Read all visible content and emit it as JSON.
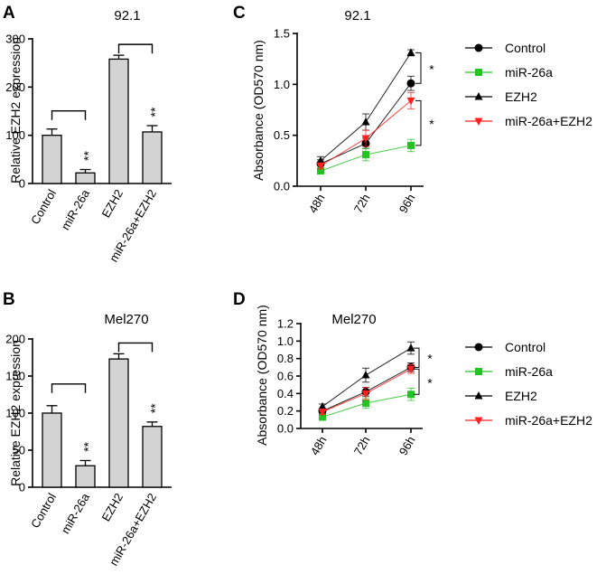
{
  "chart_data": [
    {
      "panel": "A",
      "type": "bar",
      "title": "92.1",
      "ylabel": "Relative EZH2 expression",
      "ylim": [
        0,
        300
      ],
      "yticks": [
        0,
        100,
        200,
        300
      ],
      "categories": [
        "Control",
        "miR-26a",
        "EZH2",
        "miR-26a+EZH2"
      ],
      "values": [
        100,
        22,
        258,
        107
      ],
      "errors": [
        13,
        7,
        8,
        13
      ],
      "significance": [
        "",
        "**",
        "",
        "**"
      ],
      "brackets": [
        [
          0,
          1
        ],
        [
          2,
          3
        ]
      ]
    },
    {
      "panel": "C",
      "type": "line",
      "title": "92.1",
      "ylabel": "Absorbance (OD570 nm)",
      "ylim": [
        0,
        1.5
      ],
      "yticks": [
        "0.0",
        "0.5",
        "1.0",
        "1.5"
      ],
      "x": [
        "48h",
        "72h",
        "96h"
      ],
      "series": [
        {
          "name": "Control",
          "values": [
            0.22,
            0.42,
            1.01
          ],
          "errors": [
            0.04,
            0.05,
            0.07
          ],
          "color": "#000000",
          "marker": "circle"
        },
        {
          "name": "miR-26a",
          "values": [
            0.15,
            0.31,
            0.4
          ],
          "errors": [
            0.02,
            0.06,
            0.06
          ],
          "color": "#22c322",
          "marker": "square"
        },
        {
          "name": "EZH2",
          "values": [
            0.25,
            0.63,
            1.31
          ],
          "errors": [
            0.04,
            0.08,
            0.03
          ],
          "color": "#000000",
          "marker": "triangle-up"
        },
        {
          "name": "miR-26a+EZH2",
          "values": [
            0.2,
            0.47,
            0.84
          ],
          "errors": [
            0.03,
            0.08,
            0.08
          ],
          "color": "#ff2020",
          "marker": "triangle-down"
        }
      ],
      "significance": [
        {
          "label": "*",
          "between": [
            "EZH2",
            "Control"
          ]
        },
        {
          "label": "*",
          "between": [
            "miR-26a+EZH2",
            "miR-26a"
          ]
        }
      ]
    },
    {
      "panel": "B",
      "type": "bar",
      "title": "Mel270",
      "ylabel": "Relative EZH2 expression",
      "ylim": [
        0,
        200
      ],
      "yticks": [
        0,
        50,
        100,
        150,
        200
      ],
      "categories": [
        "Control",
        "miR-26a",
        "EZH2",
        "miR-26a+EZH2"
      ],
      "values": [
        100,
        29,
        173,
        82
      ],
      "errors": [
        10,
        7,
        7,
        6
      ],
      "significance": [
        "",
        "**",
        "",
        "**"
      ],
      "brackets": [
        [
          0,
          1
        ],
        [
          2,
          3
        ]
      ]
    },
    {
      "panel": "D",
      "type": "line",
      "title": "Mel270",
      "ylabel": "Absorbance (OD570 nm)",
      "ylim": [
        0,
        1.2
      ],
      "yticks": [
        "0.0",
        "0.2",
        "0.4",
        "0.6",
        "0.8",
        "1.0",
        "1.2"
      ],
      "x": [
        "48h",
        "72h",
        "96h"
      ],
      "series": [
        {
          "name": "Control",
          "values": [
            0.2,
            0.42,
            0.7
          ],
          "errors": [
            0.03,
            0.05,
            0.05
          ],
          "color": "#000000",
          "marker": "circle"
        },
        {
          "name": "miR-26a",
          "values": [
            0.13,
            0.29,
            0.39
          ],
          "errors": [
            0.02,
            0.06,
            0.07
          ],
          "color": "#22c322",
          "marker": "square"
        },
        {
          "name": "EZH2",
          "values": [
            0.25,
            0.61,
            0.92
          ],
          "errors": [
            0.03,
            0.08,
            0.07
          ],
          "color": "#000000",
          "marker": "triangle-up"
        },
        {
          "name": "miR-26a+EZH2",
          "values": [
            0.19,
            0.4,
            0.68
          ],
          "errors": [
            0.03,
            0.07,
            0.05
          ],
          "color": "#ff2020",
          "marker": "triangle-down"
        }
      ],
      "significance": [
        {
          "label": "*",
          "between": [
            "EZH2",
            "Control"
          ]
        },
        {
          "label": "*",
          "between": [
            "miR-26a+EZH2",
            "miR-26a"
          ]
        }
      ]
    }
  ],
  "colors": {
    "bar_fill": "#d3d3d3",
    "axis": "#000000"
  }
}
